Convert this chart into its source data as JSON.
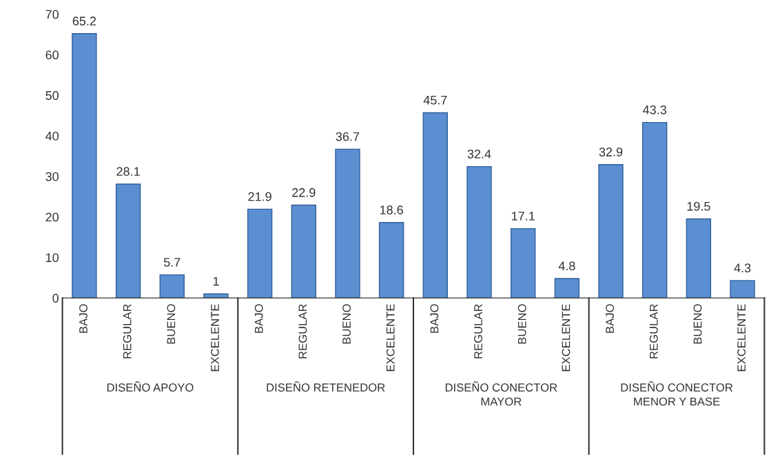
{
  "chart_data": {
    "type": "bar",
    "categories": [
      "BAJO",
      "REGULAR",
      "BUENO",
      "EXCELENTE",
      "BAJO",
      "REGULAR",
      "BUENO",
      "EXCELENTE",
      "BAJO",
      "REGULAR",
      "BUENO",
      "EXCELENTE",
      "BAJO",
      "REGULAR",
      "BUENO",
      "EXCELENTE"
    ],
    "values": [
      65.2,
      28.1,
      5.7,
      1,
      21.9,
      22.9,
      36.7,
      18.6,
      45.7,
      32.4,
      17.1,
      4.8,
      32.9,
      43.3,
      19.5,
      4.3
    ],
    "color": "#5b8fd1",
    "ylim": [
      0,
      70
    ],
    "yticks": [
      0,
      10,
      20,
      30,
      40,
      50,
      60,
      70
    ],
    "data_labels": true,
    "grid": false,
    "annotations": [
      "DISEÑO APOYO",
      "DISEÑO RETENEDOR",
      "DISEÑO CONECTOR\nMAYOR",
      "DISEÑO CONECTOR\nMENOR Y BASE"
    ]
  }
}
